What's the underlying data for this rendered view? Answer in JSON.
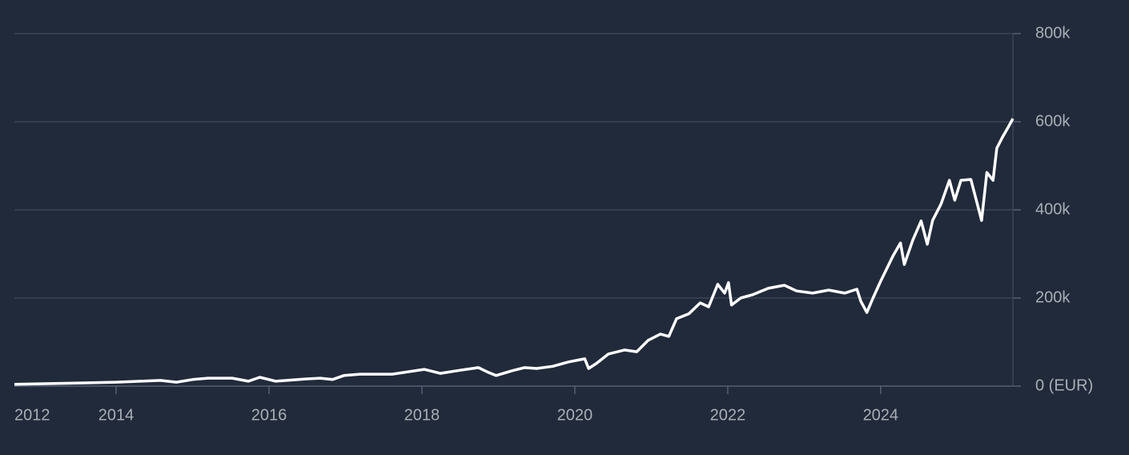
{
  "chart_data": {
    "type": "line",
    "x": [
      2012.67,
      2013.53,
      2014.0,
      2014.58,
      2014.79,
      2015.0,
      2015.2,
      2015.52,
      2015.73,
      2015.88,
      2016.09,
      2016.46,
      2016.67,
      2016.83,
      2016.98,
      2017.19,
      2017.61,
      2018.03,
      2018.24,
      2018.5,
      2018.74,
      2018.87,
      2018.97,
      2019.18,
      2019.34,
      2019.5,
      2019.71,
      2019.92,
      2020.13,
      2020.18,
      2020.28,
      2020.44,
      2020.65,
      2020.81,
      2020.96,
      2021.12,
      2021.23,
      2021.33,
      2021.49,
      2021.64,
      2021.75,
      2021.87,
      2021.96,
      2022.01,
      2022.05,
      2022.17,
      2022.32,
      2022.53,
      2022.74,
      2022.9,
      2023.11,
      2023.32,
      2023.53,
      2023.69,
      2023.74,
      2023.82,
      2023.9,
      2024.0,
      2024.16,
      2024.26,
      2024.31,
      2024.42,
      2024.53,
      2024.61,
      2024.68,
      2024.79,
      2024.9,
      2024.97,
      2025.05,
      2025.18,
      2025.32,
      2025.39,
      2025.47,
      2025.52,
      2025.6,
      2025.66,
      2025.73
    ],
    "series": [
      {
        "color": "#ffffff",
        "values": [
          4000,
          7000,
          9000,
          13000,
          9000,
          15000,
          18000,
          18000,
          11000,
          20000,
          11000,
          16000,
          18000,
          15000,
          24000,
          27000,
          27000,
          38000,
          29000,
          36000,
          42000,
          31000,
          24000,
          35000,
          42000,
          40000,
          45000,
          55000,
          62000,
          40000,
          51000,
          73000,
          82000,
          78000,
          104000,
          118000,
          113000,
          153000,
          164000,
          189000,
          180000,
          231000,
          211000,
          235000,
          184000,
          200000,
          207000,
          222000,
          229000,
          216000,
          211000,
          218000,
          211000,
          220000,
          193000,
          167000,
          200000,
          238000,
          295000,
          325000,
          276000,
          331000,
          375000,
          322000,
          376000,
          413000,
          467000,
          422000,
          467000,
          469000,
          376000,
          485000,
          467000,
          540000,
          567000,
          585000,
          607000
        ]
      }
    ],
    "xlim": [
      2012.67,
      2025.73
    ],
    "xticks": [
      2012,
      2014,
      2016,
      2018,
      2020,
      2022,
      2024
    ],
    "ylim": [
      0,
      800000
    ],
    "yticks": [
      {
        "value": 0,
        "label": "0 (EUR)"
      },
      {
        "value": 200000,
        "label": "200k"
      },
      {
        "value": 400000,
        "label": "400k"
      },
      {
        "value": 600000,
        "label": "600k"
      },
      {
        "value": 800000,
        "label": "800k"
      }
    ],
    "grid": true
  }
}
